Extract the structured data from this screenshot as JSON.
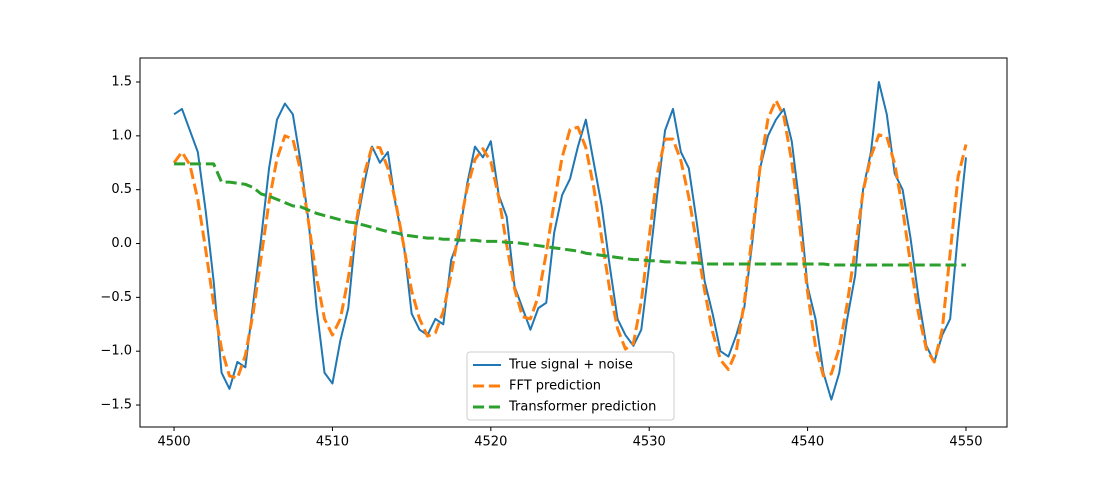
{
  "chart_data": {
    "type": "line",
    "x": [
      4500,
      4500.5,
      4501,
      4501.5,
      4502,
      4502.5,
      4503,
      4503.5,
      4504,
      4504.5,
      4505,
      4505.5,
      4506,
      4506.5,
      4507,
      4507.5,
      4508,
      4508.5,
      4509,
      4509.5,
      4510,
      4510.5,
      4511,
      4511.5,
      4512,
      4512.5,
      4513,
      4513.5,
      4514,
      4514.5,
      4515,
      4515.5,
      4516,
      4516.5,
      4517,
      4517.5,
      4518,
      4518.5,
      4519,
      4519.5,
      4520,
      4520.5,
      4521,
      4521.5,
      4522,
      4522.5,
      4523,
      4523.5,
      4524,
      4524.5,
      4525,
      4525.5,
      4526,
      4526.5,
      4527,
      4527.5,
      4528,
      4528.5,
      4529,
      4529.5,
      4530,
      4530.5,
      4531,
      4531.5,
      4532,
      4532.5,
      4533,
      4533.5,
      4534,
      4534.5,
      4535,
      4535.5,
      4536,
      4536.5,
      4537,
      4537.5,
      4538,
      4538.5,
      4539,
      4539.5,
      4540,
      4540.5,
      4541,
      4541.5,
      4542,
      4542.5,
      4543,
      4543.5,
      4544,
      4544.5,
      4545,
      4545.5,
      4546,
      4546.5,
      4547,
      4547.5,
      4548,
      4548.5,
      4549,
      4549.5,
      4550
    ],
    "series": [
      {
        "name": "True signal + noise",
        "color": "#1f77b4",
        "dashed": false,
        "values": [
          1.2,
          1.25,
          1.05,
          0.85,
          0.3,
          -0.35,
          -1.2,
          -1.35,
          -1.1,
          -1.15,
          -0.55,
          0.05,
          0.7,
          1.15,
          1.3,
          1.2,
          0.75,
          0.2,
          -0.6,
          -1.2,
          -1.3,
          -0.9,
          -0.6,
          0.15,
          0.55,
          0.9,
          0.75,
          0.85,
          0.35,
          0.0,
          -0.65,
          -0.8,
          -0.85,
          -0.7,
          -0.75,
          -0.15,
          0.05,
          0.55,
          0.9,
          0.8,
          0.95,
          0.45,
          0.25,
          -0.4,
          -0.6,
          -0.8,
          -0.6,
          -0.55,
          0.1,
          0.45,
          0.6,
          0.9,
          1.15,
          0.75,
          0.35,
          -0.2,
          -0.7,
          -0.85,
          -0.95,
          -0.8,
          -0.2,
          0.45,
          1.05,
          1.25,
          0.85,
          0.7,
          0.2,
          -0.35,
          -0.65,
          -1.0,
          -1.05,
          -0.85,
          -0.6,
          0.0,
          0.7,
          1.0,
          1.15,
          1.25,
          0.95,
          0.35,
          -0.4,
          -0.7,
          -1.2,
          -1.45,
          -1.2,
          -0.7,
          -0.3,
          0.5,
          0.85,
          1.5,
          1.2,
          0.65,
          0.5,
          0.05,
          -0.5,
          -0.95,
          -1.1,
          -0.85,
          -0.7,
          0.1,
          0.8
        ]
      },
      {
        "name": "FFT prediction",
        "color": "#ff7f0e",
        "dashed": true,
        "values": [
          0.75,
          0.85,
          0.73,
          0.41,
          -0.06,
          -0.56,
          -0.98,
          -1.23,
          -1.25,
          -1.04,
          -0.64,
          -0.125,
          0.39,
          0.79,
          1.0,
          0.97,
          0.67,
          0.19,
          -0.32,
          -0.7,
          -0.85,
          -0.7,
          -0.32,
          0.19,
          0.64,
          0.9,
          0.89,
          0.7,
          0.38,
          -0.02,
          -0.44,
          -0.7,
          -0.86,
          -0.83,
          -0.63,
          -0.28,
          0.13,
          0.51,
          0.78,
          0.88,
          0.76,
          0.43,
          -0.01,
          -0.42,
          -0.68,
          -0.7,
          -0.49,
          -0.09,
          0.38,
          0.8,
          1.06,
          1.08,
          0.89,
          0.52,
          0.05,
          -0.42,
          -0.79,
          -0.98,
          -0.93,
          -0.54,
          0.06,
          0.64,
          0.97,
          0.97,
          0.77,
          0.43,
          0.0,
          -0.44,
          -0.82,
          -1.08,
          -1.17,
          -1.0,
          -0.55,
          0.08,
          0.71,
          1.16,
          1.33,
          1.18,
          0.76,
          0.17,
          -0.45,
          -0.96,
          -1.23,
          -1.21,
          -0.97,
          -0.56,
          -0.06,
          0.48,
          0.81,
          1.01,
          0.99,
          0.74,
          0.32,
          -0.19,
          -0.65,
          -0.98,
          -1.1,
          -0.8,
          -0.09,
          0.62,
          0.92
        ]
      },
      {
        "name": "Transformer prediction",
        "color": "#2ca02c",
        "dashed": true,
        "values": [
          0.74,
          0.74,
          0.74,
          0.74,
          0.74,
          0.74,
          0.57,
          0.57,
          0.56,
          0.55,
          0.52,
          0.46,
          0.44,
          0.41,
          0.38,
          0.35,
          0.34,
          0.31,
          0.28,
          0.26,
          0.24,
          0.22,
          0.2,
          0.19,
          0.17,
          0.15,
          0.13,
          0.11,
          0.1,
          0.08,
          0.07,
          0.06,
          0.05,
          0.05,
          0.04,
          0.04,
          0.03,
          0.03,
          0.03,
          0.02,
          0.02,
          0.02,
          0.01,
          0.01,
          0.0,
          -0.01,
          -0.02,
          -0.03,
          -0.04,
          -0.05,
          -0.06,
          -0.07,
          -0.09,
          -0.1,
          -0.11,
          -0.12,
          -0.13,
          -0.14,
          -0.15,
          -0.15,
          -0.16,
          -0.16,
          -0.17,
          -0.17,
          -0.18,
          -0.18,
          -0.18,
          -0.19,
          -0.19,
          -0.19,
          -0.19,
          -0.19,
          -0.19,
          -0.19,
          -0.19,
          -0.19,
          -0.19,
          -0.19,
          -0.19,
          -0.19,
          -0.19,
          -0.19,
          -0.19,
          -0.2,
          -0.2,
          -0.2,
          -0.2,
          -0.2,
          -0.2,
          -0.2,
          -0.2,
          -0.2,
          -0.2,
          -0.2,
          -0.2,
          -0.2,
          -0.2,
          -0.2,
          -0.2,
          -0.2,
          -0.2
        ]
      }
    ],
    "xlim": [
      4497.85,
      4552.59
    ],
    "ylim": [
      -1.704,
      1.723
    ],
    "xticks": [
      4500,
      4510,
      4520,
      4530,
      4540,
      4550
    ],
    "yticks": [
      {
        "value": -1.5,
        "label": "−1.5"
      },
      {
        "value": -1.0,
        "label": "−1.0"
      },
      {
        "value": -0.5,
        "label": "−0.5"
      },
      {
        "value": 0,
        "label": "0.0"
      },
      0.5,
      {
        "value": 1.0,
        "label": "1.0"
      },
      1.5
    ],
    "legend": "lower center",
    "grid": false
  }
}
